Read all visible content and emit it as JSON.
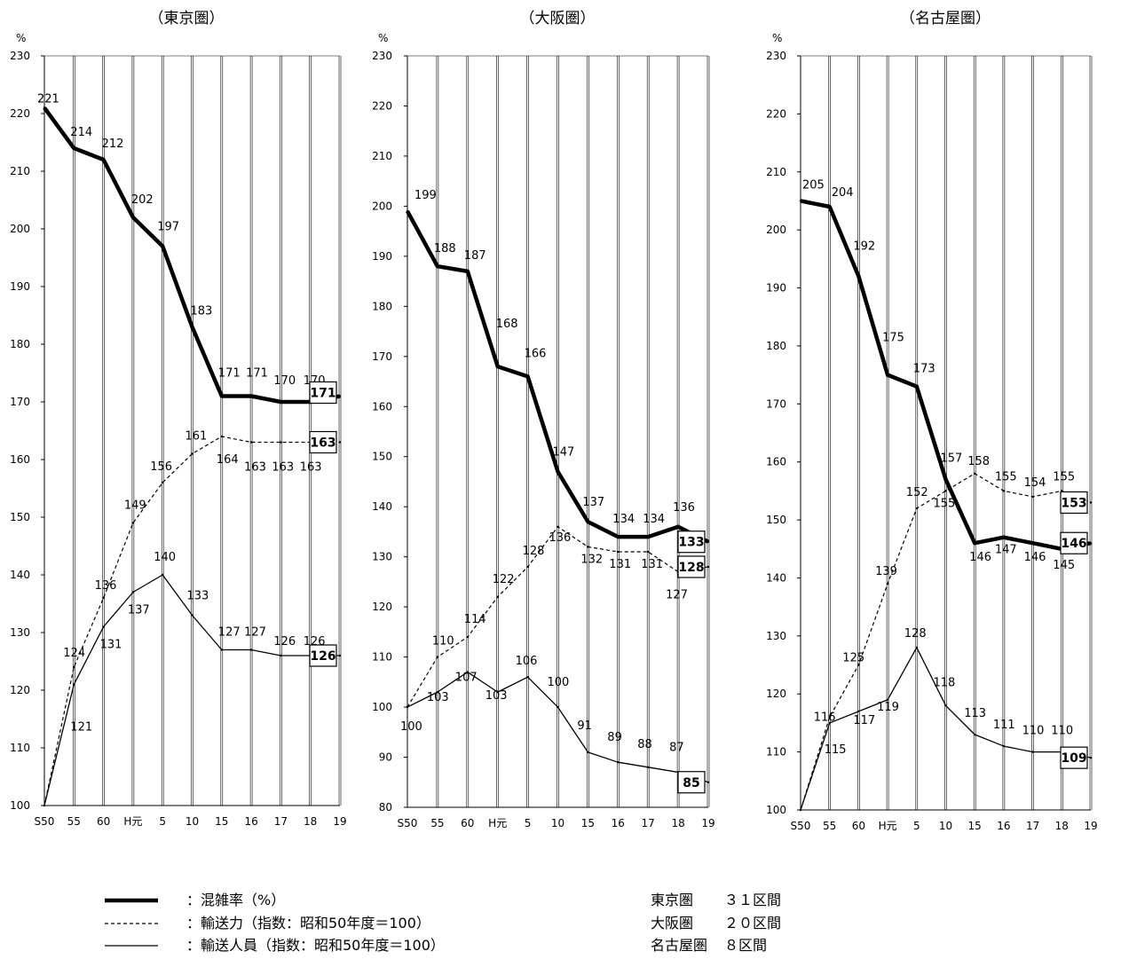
{
  "chart_data": [
    {
      "type": "line",
      "title": "（東京圏）",
      "ylabel": "%",
      "x": [
        "S50",
        "55",
        "60",
        "H元",
        "5",
        "10",
        "15",
        "16",
        "17",
        "18",
        "19"
      ],
      "ylim": [
        100,
        230
      ],
      "yticks": [
        100,
        110,
        120,
        130,
        140,
        150,
        160,
        170,
        180,
        190,
        200,
        210,
        220,
        230
      ],
      "series": [
        {
          "key": "congestion",
          "values": [
            221,
            214,
            212,
            202,
            197,
            183,
            171,
            171,
            170,
            170,
            171
          ]
        },
        {
          "key": "capacity",
          "values": [
            100,
            124,
            136,
            149,
            156,
            161,
            164,
            163,
            163,
            163,
            163
          ]
        },
        {
          "key": "passengers",
          "values": [
            100,
            121,
            131,
            137,
            140,
            133,
            127,
            127,
            126,
            126,
            126
          ]
        }
      ],
      "grid": "vertical"
    },
    {
      "type": "line",
      "title": "（大阪圏）",
      "ylabel": "%",
      "x": [
        "S50",
        "55",
        "60",
        "H元",
        "5",
        "10",
        "15",
        "16",
        "17",
        "18",
        "19"
      ],
      "ylim": [
        80,
        230
      ],
      "yticks": [
        80,
        90,
        100,
        110,
        120,
        130,
        140,
        150,
        160,
        170,
        180,
        190,
        200,
        210,
        220,
        230
      ],
      "series": [
        {
          "key": "congestion",
          "values": [
            199,
            188,
            187,
            168,
            166,
            147,
            137,
            134,
            134,
            136,
            133
          ]
        },
        {
          "key": "capacity",
          "values": [
            100,
            110,
            114,
            122,
            128,
            136,
            132,
            131,
            131,
            127,
            128
          ]
        },
        {
          "key": "passengers",
          "values": [
            100,
            103,
            107,
            103,
            106,
            100,
            91,
            89,
            88,
            87,
            85
          ]
        }
      ],
      "grid": "vertical"
    },
    {
      "type": "line",
      "title": "（名古屋圏）",
      "ylabel": "%",
      "x": [
        "S50",
        "55",
        "60",
        "H元",
        "5",
        "10",
        "15",
        "16",
        "17",
        "18",
        "19"
      ],
      "ylim": [
        100,
        230
      ],
      "yticks": [
        100,
        110,
        120,
        130,
        140,
        150,
        160,
        170,
        180,
        190,
        200,
        210,
        220,
        230
      ],
      "series": [
        {
          "key": "congestion",
          "values": [
            205,
            204,
            192,
            175,
            173,
            157,
            146,
            147,
            146,
            145,
            146
          ]
        },
        {
          "key": "capacity",
          "values": [
            100,
            116,
            125,
            139,
            152,
            155,
            158,
            155,
            154,
            155,
            153
          ]
        },
        {
          "key": "passengers",
          "values": [
            100,
            115,
            117,
            119,
            128,
            118,
            113,
            111,
            110,
            110,
            109
          ]
        }
      ],
      "grid": "vertical"
    }
  ],
  "legend": [
    {
      "key": "congestion",
      "label": "：混雑率（%）"
    },
    {
      "key": "capacity",
      "label": "：輸送力（指数：昭和50年度＝100）"
    },
    {
      "key": "passengers",
      "label": "：輸送人員（指数：昭和50年度＝100）"
    }
  ],
  "notes": [
    {
      "region": "東京圏",
      "sections": "３１区間"
    },
    {
      "region": "大阪圏",
      "sections": "２０区間"
    },
    {
      "region": "名古屋圏",
      "sections": "８区間"
    }
  ],
  "colors": {
    "line": "#000000",
    "background": "#ffffff"
  }
}
